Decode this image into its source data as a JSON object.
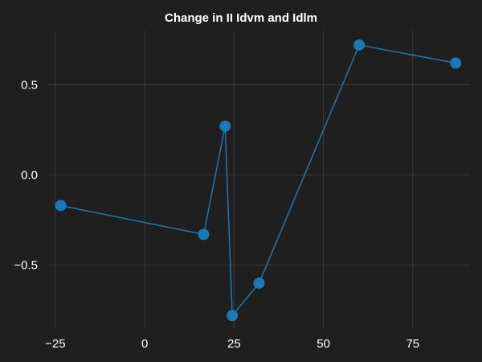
{
  "chart_data": {
    "type": "line",
    "title": "Change in II Idvm and Idlm",
    "xlabel": "",
    "ylabel": "",
    "xlim": [
      -27,
      91
    ],
    "ylim": [
      -0.85,
      0.8
    ],
    "x_ticks": [
      -25,
      0,
      25,
      50,
      75
    ],
    "x_tick_labels": [
      "−25",
      "0",
      "25",
      "50",
      "75"
    ],
    "y_ticks": [
      -0.5,
      0.0,
      0.5
    ],
    "y_tick_labels": [
      "−0.5",
      "0.0",
      "0.5"
    ],
    "grid": true,
    "legend": "none",
    "series": [
      {
        "color": "#1f77b4",
        "marker": "circle",
        "points": [
          {
            "x": -23.5,
            "y": -0.17
          },
          {
            "x": 16.5,
            "y": -0.33
          },
          {
            "x": 22.5,
            "y": 0.27
          },
          {
            "x": 24.5,
            "y": -0.78
          },
          {
            "x": 32.0,
            "y": -0.6
          },
          {
            "x": 60.0,
            "y": 0.72
          },
          {
            "x": 87.0,
            "y": 0.62
          }
        ]
      }
    ]
  },
  "colors": {
    "background": "#1f1f1f",
    "grid": "#3a3a3a",
    "text": "#ffffff",
    "series": "#1f77b4"
  }
}
